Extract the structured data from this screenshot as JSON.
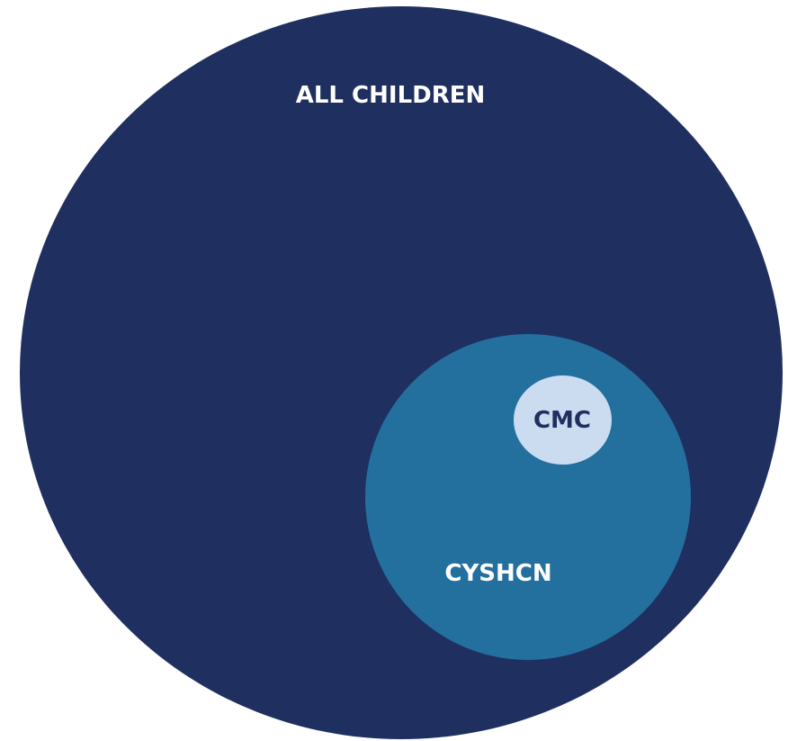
{
  "diagram": {
    "type": "nested-circles",
    "colors": {
      "outer_fill": "#1f3060",
      "middle_fill": "#23709f",
      "inner_fill": "#cbdcf0",
      "outer_text": "#ffffff",
      "middle_text": "#ffffff",
      "inner_text": "#1f3060"
    },
    "circles": [
      {
        "id": "outer",
        "label": "ALL CHILDREN"
      },
      {
        "id": "middle",
        "label": "CYSHCN"
      },
      {
        "id": "inner",
        "label": "CMC"
      }
    ]
  }
}
